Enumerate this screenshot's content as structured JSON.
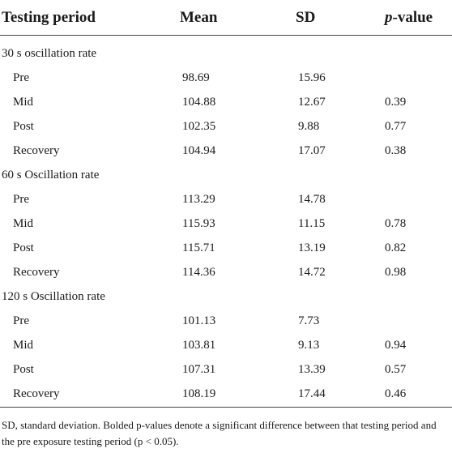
{
  "table": {
    "headers": {
      "period": "Testing period",
      "mean": "Mean",
      "sd": "SD",
      "p_prefix": "p",
      "p_suffix": "-value"
    },
    "groups": [
      {
        "title": "30 s oscillation rate",
        "rows": [
          {
            "period": "Pre",
            "mean": "98.69",
            "sd": "15.96",
            "p": ""
          },
          {
            "period": "Mid",
            "mean": "104.88",
            "sd": "12.67",
            "p": "0.39"
          },
          {
            "period": "Post",
            "mean": "102.35",
            "sd": "9.88",
            "p": "0.77"
          },
          {
            "period": "Recovery",
            "mean": "104.94",
            "sd": "17.07",
            "p": "0.38"
          }
        ]
      },
      {
        "title": "60 s Oscillation rate",
        "rows": [
          {
            "period": "Pre",
            "mean": "113.29",
            "sd": "14.78",
            "p": ""
          },
          {
            "period": "Mid",
            "mean": "115.93",
            "sd": "11.15",
            "p": "0.78"
          },
          {
            "period": "Post",
            "mean": "115.71",
            "sd": "13.19",
            "p": "0.82"
          },
          {
            "period": "Recovery",
            "mean": "114.36",
            "sd": "14.72",
            "p": "0.98"
          }
        ]
      },
      {
        "title": "120 s Oscillation rate",
        "rows": [
          {
            "period": "Pre",
            "mean": "101.13",
            "sd": "7.73",
            "p": ""
          },
          {
            "period": "Mid",
            "mean": "103.81",
            "sd": "9.13",
            "p": "0.94"
          },
          {
            "period": "Post",
            "mean": "107.31",
            "sd": "13.39",
            "p": "0.57"
          },
          {
            "period": "Recovery",
            "mean": "108.19",
            "sd": "17.44",
            "p": "0.46"
          }
        ]
      }
    ]
  },
  "footnote": "SD, standard deviation. Bolded p-values denote a significant difference between that testing period and the pre exposure testing period (p < 0.05)."
}
